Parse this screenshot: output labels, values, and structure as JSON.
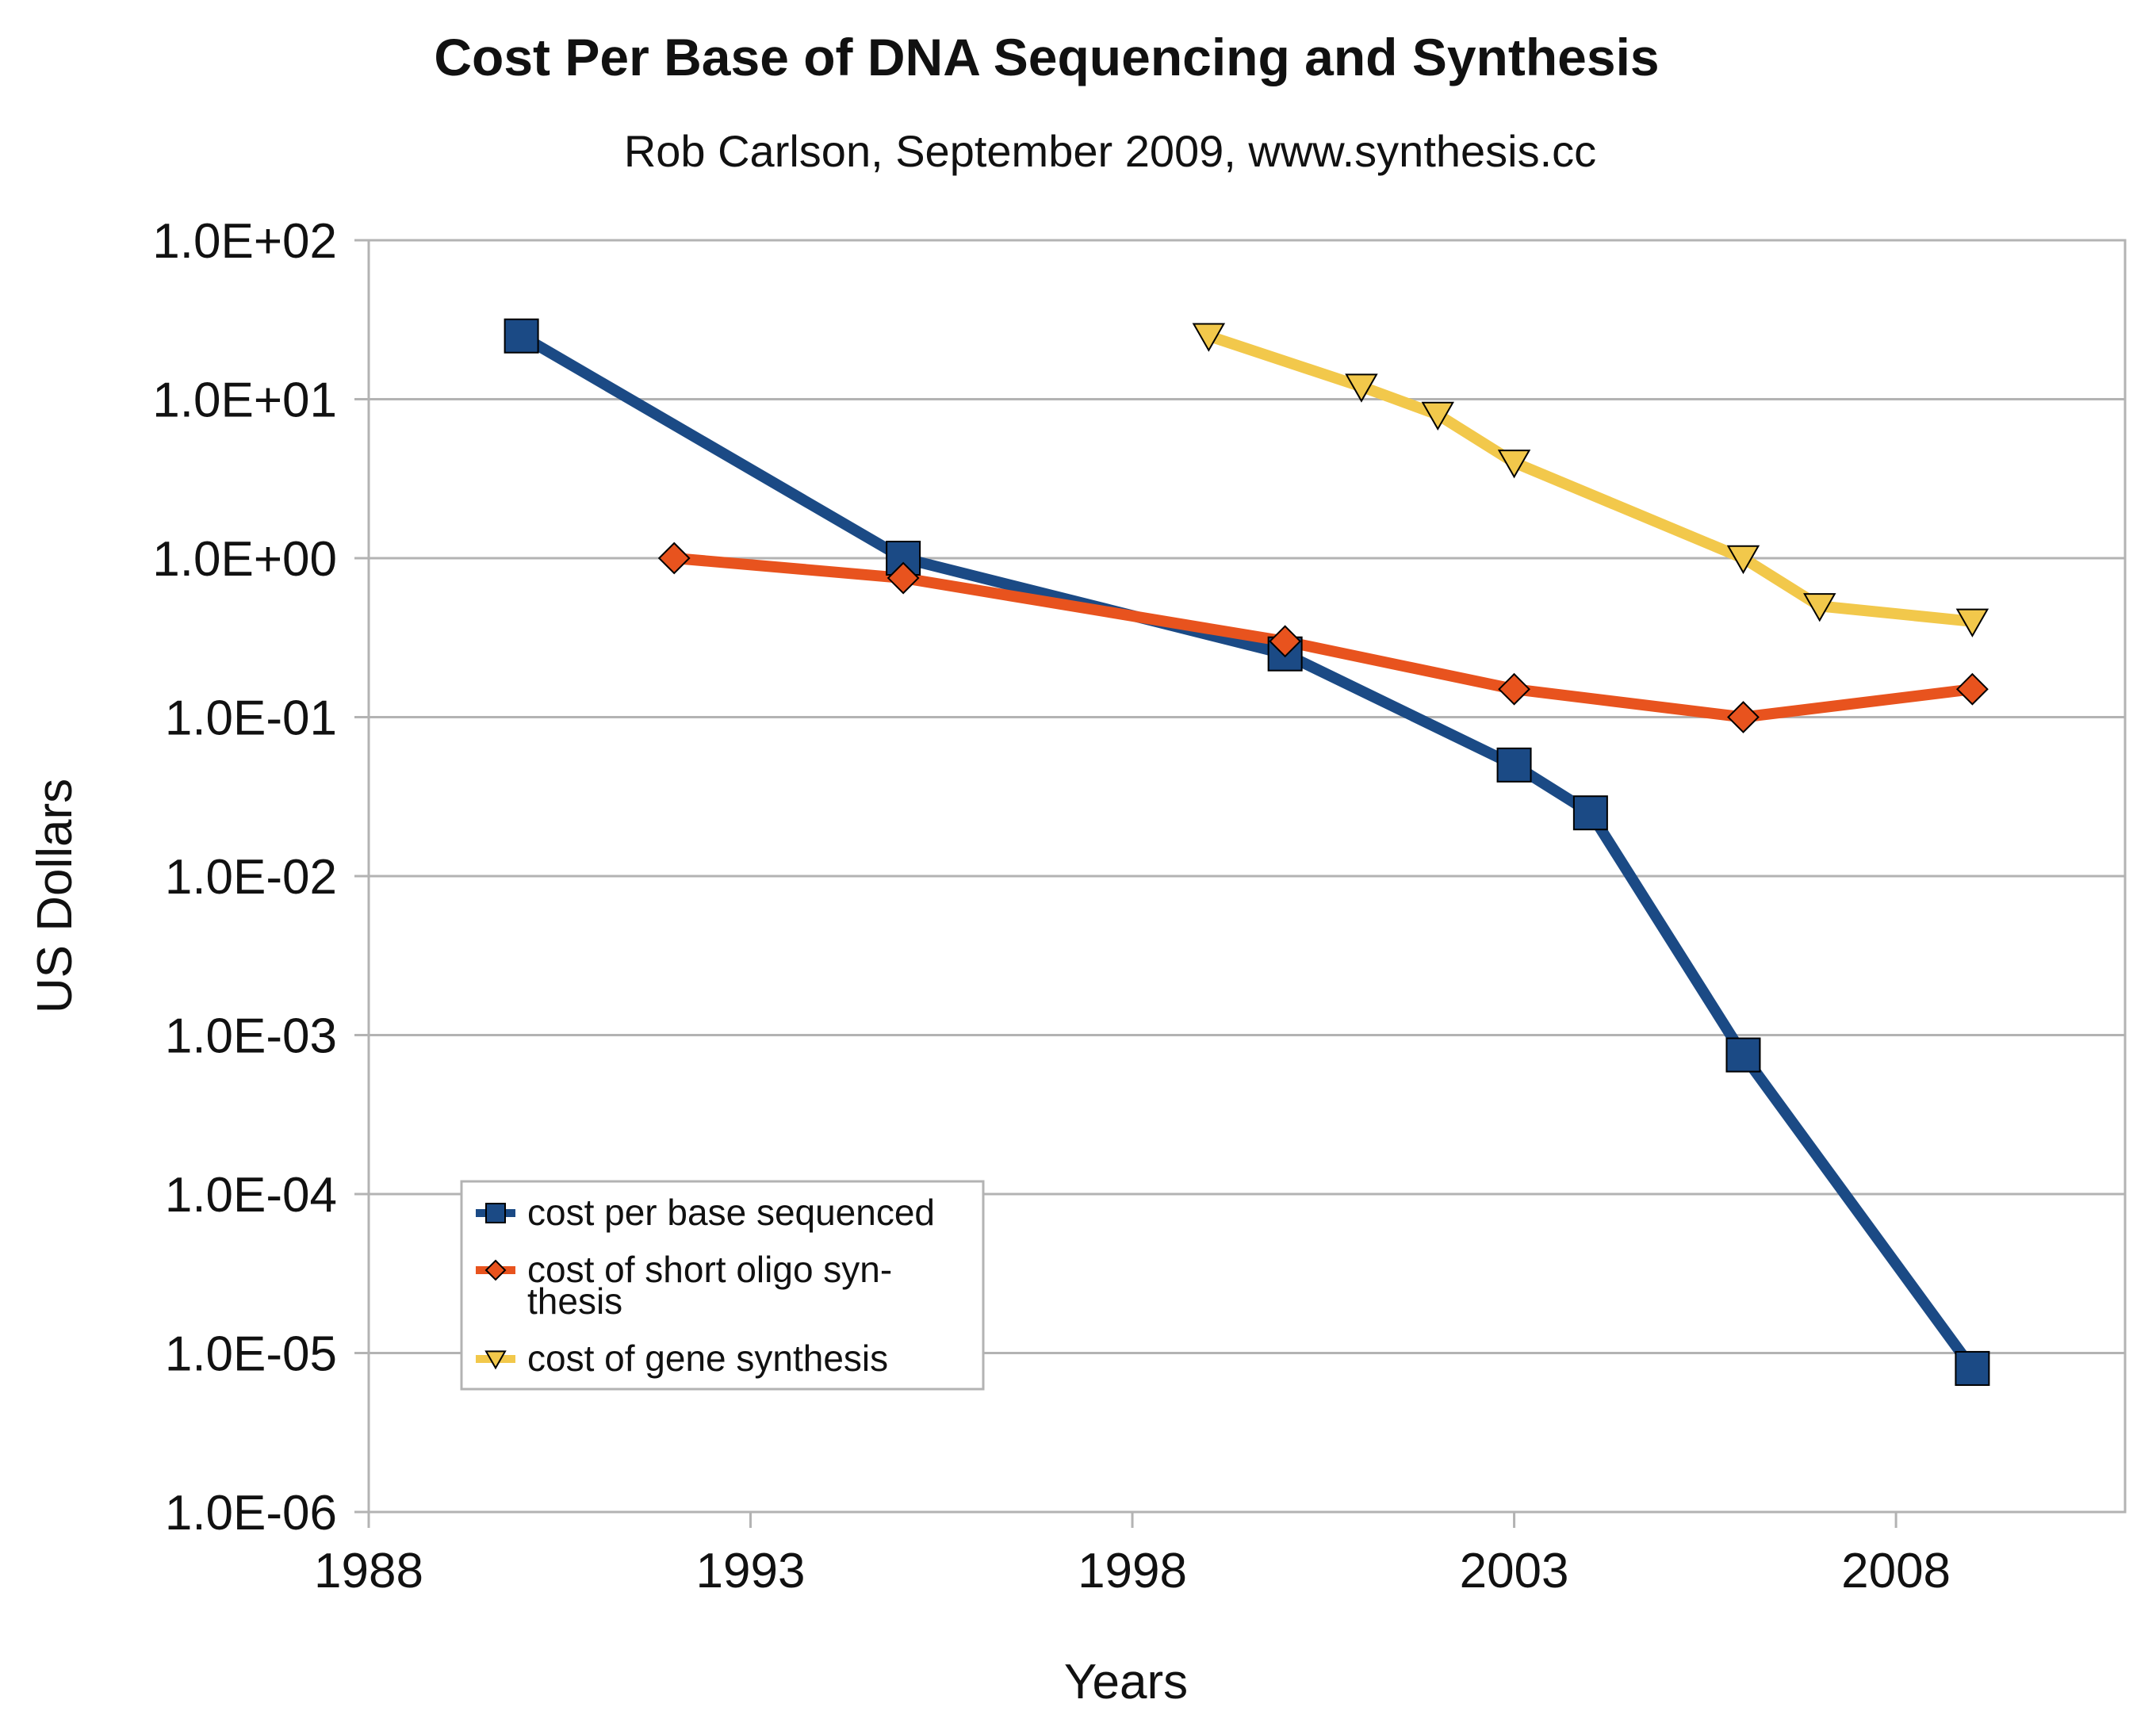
{
  "chart_data": {
    "type": "line",
    "title": "Cost Per Base of DNA Sequencing and Synthesis",
    "subtitle": "Rob Carlson, September 2009, www.synthesis.cc",
    "xlabel": "Years",
    "ylabel": "US Dollars",
    "xlim": [
      1988,
      2011
    ],
    "ylim": [
      1e-06,
      100
    ],
    "yscale": "log",
    "grid": true,
    "legend_position": "bottom-left",
    "x_ticks": [
      1988,
      1993,
      1998,
      2003,
      2008
    ],
    "x_tick_labels": [
      "1988",
      "1993",
      "1998",
      "2003",
      "2008"
    ],
    "y_ticks": [
      100,
      10,
      1,
      0.1,
      0.01,
      0.001,
      0.0001,
      1e-05,
      1e-06
    ],
    "y_tick_labels": [
      "1.0E+02",
      "1.0E+01",
      "1.0E+00",
      "1.0E-01",
      "1.0E-02",
      "1.0E-03",
      "1.0E-04",
      "1.0E-05",
      "1.0E-06"
    ],
    "series": [
      {
        "name": "cost per base sequenced",
        "legend_lines": [
          "cost per base sequenced"
        ],
        "color": "#1b4a85",
        "marker": "square",
        "x": [
          1990,
          1995,
          2000,
          2003,
          2004,
          2006,
          2009
        ],
        "values": [
          25,
          1,
          0.25,
          0.05,
          0.025,
          0.00075,
          8e-06
        ]
      },
      {
        "name": "cost of short oligo synthesis",
        "legend_lines": [
          "cost of short oligo syn-",
          "thesis"
        ],
        "color": "#e8531e",
        "marker": "diamond",
        "x": [
          1992,
          1995,
          2000,
          2003,
          2006,
          2009
        ],
        "values": [
          1,
          0.75,
          0.3,
          0.15,
          0.1,
          0.15
        ]
      },
      {
        "name": "cost of gene synthesis",
        "legend_lines": [
          "cost of gene synthesis"
        ],
        "color": "#f2c84b",
        "marker": "triangle-down",
        "x": [
          1999,
          2001,
          2002,
          2003,
          2006,
          2007,
          2009
        ],
        "values": [
          25,
          12,
          8,
          4,
          1,
          0.5,
          0.4
        ]
      }
    ]
  }
}
